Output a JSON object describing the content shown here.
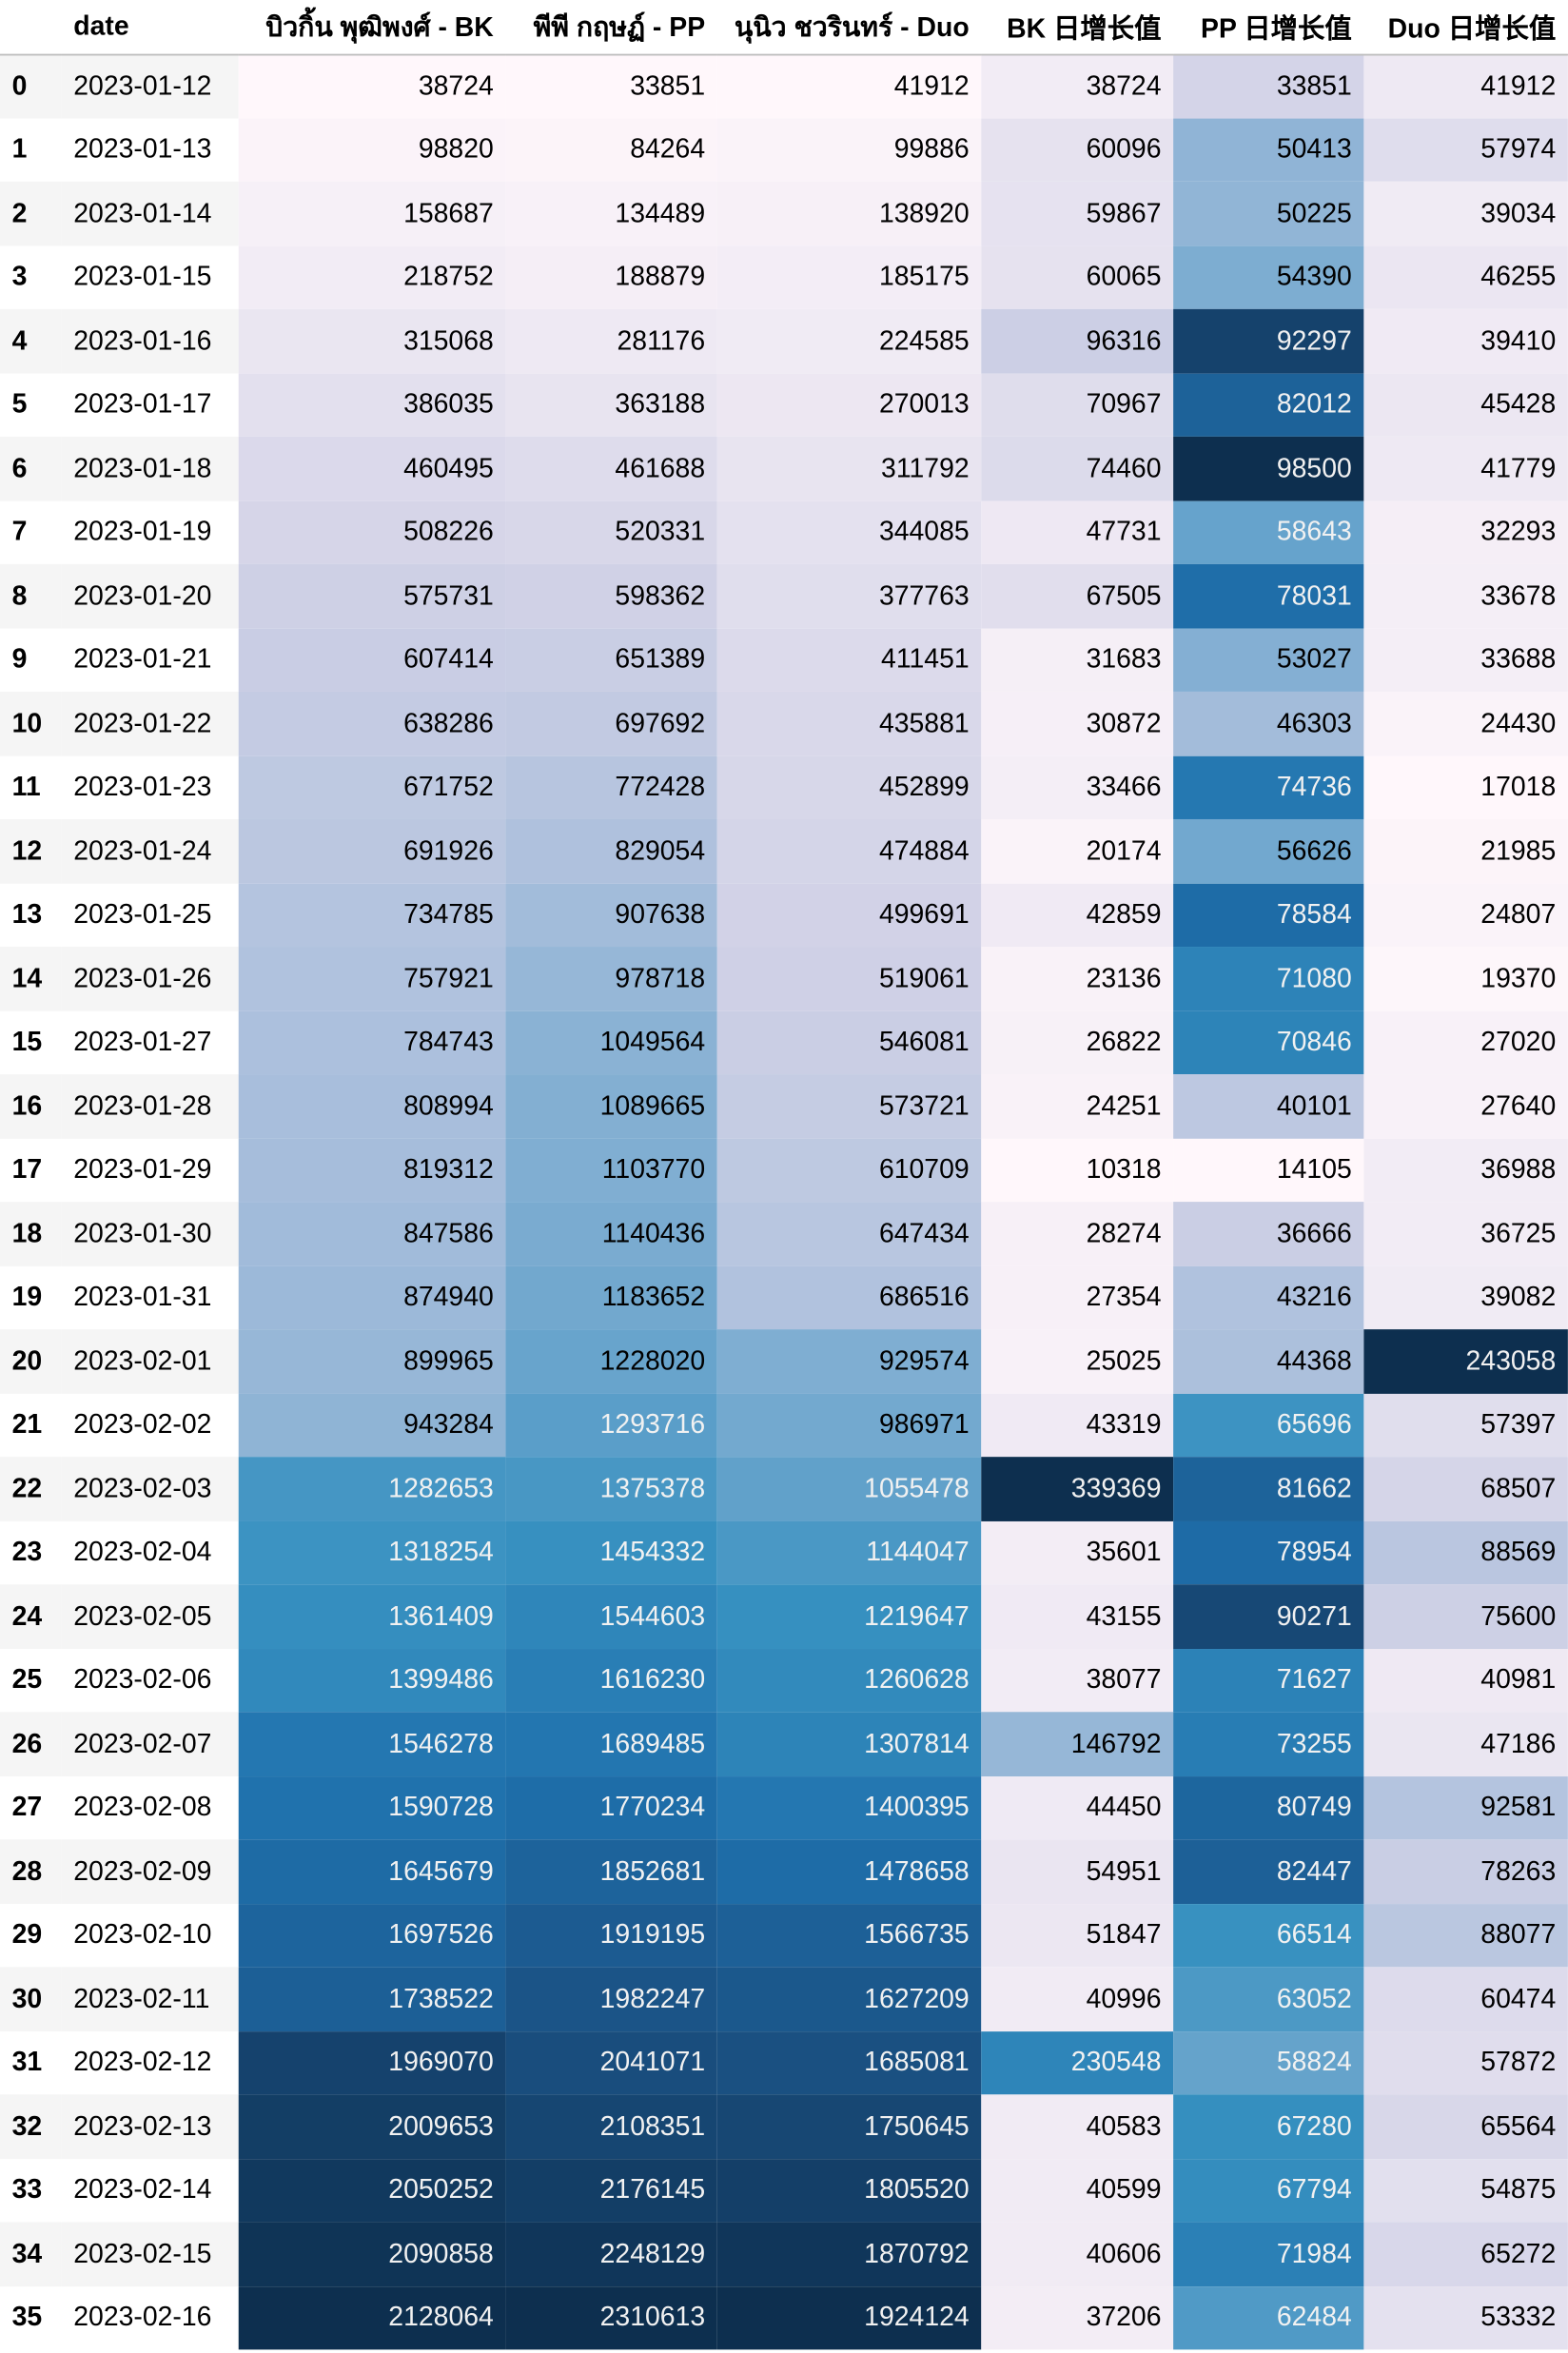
{
  "chart_data": {
    "type": "table",
    "index_header": "",
    "columns": [
      "date",
      "บิวกิ้น พุฒิพงศ์ - BK",
      "พีพี กฤษฏ์ - PP",
      "นุนิว ชวรินทร์ - Duo",
      "BK 日增长值",
      "PP 日增长值",
      "Duo 日增长值"
    ],
    "colormap": {
      "low": "#fff7fb",
      "mid": "#3690c0",
      "high": "#0d2f4f"
    },
    "rows": [
      {
        "index": "0",
        "date": "2023-01-12",
        "values": [
          38724,
          33851,
          41912,
          38724,
          33851,
          41912
        ]
      },
      {
        "index": "1",
        "date": "2023-01-13",
        "values": [
          98820,
          84264,
          99886,
          60096,
          50413,
          57974
        ]
      },
      {
        "index": "2",
        "date": "2023-01-14",
        "values": [
          158687,
          134489,
          138920,
          59867,
          50225,
          39034
        ]
      },
      {
        "index": "3",
        "date": "2023-01-15",
        "values": [
          218752,
          188879,
          185175,
          60065,
          54390,
          46255
        ]
      },
      {
        "index": "4",
        "date": "2023-01-16",
        "values": [
          315068,
          281176,
          224585,
          96316,
          92297,
          39410
        ]
      },
      {
        "index": "5",
        "date": "2023-01-17",
        "values": [
          386035,
          363188,
          270013,
          70967,
          82012,
          45428
        ]
      },
      {
        "index": "6",
        "date": "2023-01-18",
        "values": [
          460495,
          461688,
          311792,
          74460,
          98500,
          41779
        ]
      },
      {
        "index": "7",
        "date": "2023-01-19",
        "values": [
          508226,
          520331,
          344085,
          47731,
          58643,
          32293
        ]
      },
      {
        "index": "8",
        "date": "2023-01-20",
        "values": [
          575731,
          598362,
          377763,
          67505,
          78031,
          33678
        ]
      },
      {
        "index": "9",
        "date": "2023-01-21",
        "values": [
          607414,
          651389,
          411451,
          31683,
          53027,
          33688
        ]
      },
      {
        "index": "10",
        "date": "2023-01-22",
        "values": [
          638286,
          697692,
          435881,
          30872,
          46303,
          24430
        ]
      },
      {
        "index": "11",
        "date": "2023-01-23",
        "values": [
          671752,
          772428,
          452899,
          33466,
          74736,
          17018
        ]
      },
      {
        "index": "12",
        "date": "2023-01-24",
        "values": [
          691926,
          829054,
          474884,
          20174,
          56626,
          21985
        ]
      },
      {
        "index": "13",
        "date": "2023-01-25",
        "values": [
          734785,
          907638,
          499691,
          42859,
          78584,
          24807
        ]
      },
      {
        "index": "14",
        "date": "2023-01-26",
        "values": [
          757921,
          978718,
          519061,
          23136,
          71080,
          19370
        ]
      },
      {
        "index": "15",
        "date": "2023-01-27",
        "values": [
          784743,
          1049564,
          546081,
          26822,
          70846,
          27020
        ]
      },
      {
        "index": "16",
        "date": "2023-01-28",
        "values": [
          808994,
          1089665,
          573721,
          24251,
          40101,
          27640
        ]
      },
      {
        "index": "17",
        "date": "2023-01-29",
        "values": [
          819312,
          1103770,
          610709,
          10318,
          14105,
          36988
        ]
      },
      {
        "index": "18",
        "date": "2023-01-30",
        "values": [
          847586,
          1140436,
          647434,
          28274,
          36666,
          36725
        ]
      },
      {
        "index": "19",
        "date": "2023-01-31",
        "values": [
          874940,
          1183652,
          686516,
          27354,
          43216,
          39082
        ]
      },
      {
        "index": "20",
        "date": "2023-02-01",
        "values": [
          899965,
          1228020,
          929574,
          25025,
          44368,
          243058
        ]
      },
      {
        "index": "21",
        "date": "2023-02-02",
        "values": [
          943284,
          1293716,
          986971,
          43319,
          65696,
          57397
        ]
      },
      {
        "index": "22",
        "date": "2023-02-03",
        "values": [
          1282653,
          1375378,
          1055478,
          339369,
          81662,
          68507
        ]
      },
      {
        "index": "23",
        "date": "2023-02-04",
        "values": [
          1318254,
          1454332,
          1144047,
          35601,
          78954,
          88569
        ]
      },
      {
        "index": "24",
        "date": "2023-02-05",
        "values": [
          1361409,
          1544603,
          1219647,
          43155,
          90271,
          75600
        ]
      },
      {
        "index": "25",
        "date": "2023-02-06",
        "values": [
          1399486,
          1616230,
          1260628,
          38077,
          71627,
          40981
        ]
      },
      {
        "index": "26",
        "date": "2023-02-07",
        "values": [
          1546278,
          1689485,
          1307814,
          146792,
          73255,
          47186
        ]
      },
      {
        "index": "27",
        "date": "2023-02-08",
        "values": [
          1590728,
          1770234,
          1400395,
          44450,
          80749,
          92581
        ]
      },
      {
        "index": "28",
        "date": "2023-02-09",
        "values": [
          1645679,
          1852681,
          1478658,
          54951,
          82447,
          78263
        ]
      },
      {
        "index": "29",
        "date": "2023-02-10",
        "values": [
          1697526,
          1919195,
          1566735,
          51847,
          66514,
          88077
        ]
      },
      {
        "index": "30",
        "date": "2023-02-11",
        "values": [
          1738522,
          1982247,
          1627209,
          40996,
          63052,
          60474
        ]
      },
      {
        "index": "31",
        "date": "2023-02-12",
        "values": [
          1969070,
          2041071,
          1685081,
          230548,
          58824,
          57872
        ]
      },
      {
        "index": "32",
        "date": "2023-02-13",
        "values": [
          2009653,
          2108351,
          1750645,
          40583,
          67280,
          65564
        ]
      },
      {
        "index": "33",
        "date": "2023-02-14",
        "values": [
          2050252,
          2176145,
          1805520,
          40599,
          67794,
          54875
        ]
      },
      {
        "index": "34",
        "date": "2023-02-15",
        "values": [
          2090858,
          2248129,
          1870792,
          40606,
          71984,
          65272
        ]
      },
      {
        "index": "35",
        "date": "2023-02-16",
        "values": [
          2128064,
          2310613,
          1924124,
          37206,
          62484,
          53332
        ]
      }
    ]
  }
}
